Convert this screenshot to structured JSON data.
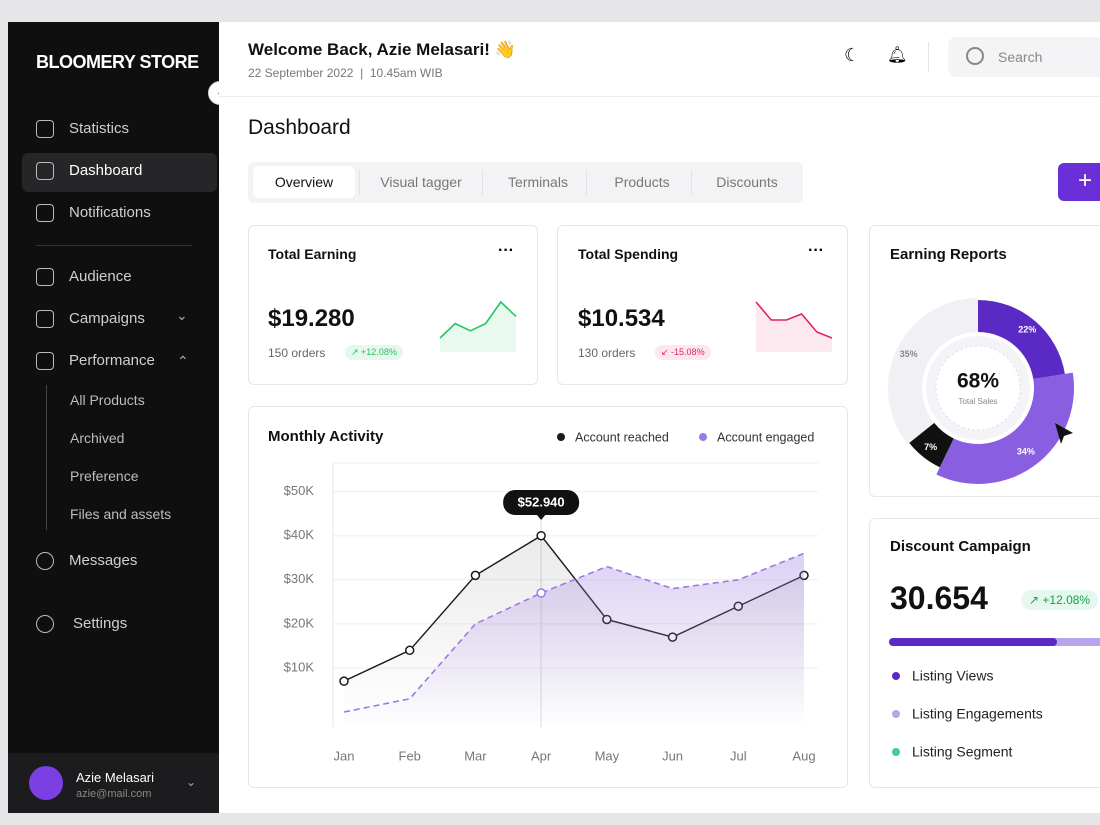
{
  "sidebar": {
    "brand": "BLOOMERY STORE",
    "menu": [
      "Statistics",
      "Dashboard",
      "Notifications",
      "Audience",
      "Campaigns",
      "Performance"
    ],
    "submenu": [
      "All Products",
      "Archived",
      "Preference",
      "Files and assets"
    ],
    "bottom_menu": [
      "Messages",
      "Settings"
    ],
    "user": {
      "name": "Azie Melasari",
      "email": "azie@mail.com"
    }
  },
  "header": {
    "greeting": "Welcome Back, Azie Melasari! 👋",
    "date": "22 September 2022",
    "time": "10.45am WIB",
    "search_placeholder": "Search"
  },
  "page_title": "Dashboard",
  "tabs": [
    "Overview",
    "Visual tagger",
    "Terminals",
    "Products",
    "Discounts"
  ],
  "cards": [
    {
      "title": "Total Earning",
      "value": "$19.280",
      "orders": "150 orders",
      "change": "+12.08%",
      "color": "#22c55e",
      "trend": [
        3,
        5,
        4,
        5,
        8,
        6
      ]
    },
    {
      "title": "Total Spending",
      "value": "$10.534",
      "orders": "130 orders",
      "change": "-15.08%",
      "color": "#e0245e",
      "trend": [
        8,
        5,
        5,
        6,
        3,
        2
      ]
    }
  ],
  "monthly_activity": {
    "type": "line",
    "title": "Monthly Activity",
    "categories": [
      "Jan",
      "Feb",
      "Mar",
      "Apr",
      "May",
      "Jun",
      "Jul",
      "Aug"
    ],
    "series": [
      {
        "name": "Account reached",
        "color": "#1a1a1a",
        "values": [
          7000,
          14000,
          31000,
          40000,
          21000,
          17000,
          24000,
          31000
        ]
      },
      {
        "name": "Account engaged",
        "color": "#9b7be0",
        "values": [
          0,
          3000,
          20000,
          27000,
          33000,
          28000,
          30000,
          36000
        ]
      }
    ],
    "ylim": [
      -3400,
      56500
    ],
    "yticks": [
      {
        "value": 10000,
        "label": "$10K"
      },
      {
        "value": 20000,
        "label": "$20K"
      },
      {
        "value": 30000,
        "label": "$30K"
      },
      {
        "value": 40000,
        "label": "$40K"
      },
      {
        "value": 50000,
        "label": "$50K"
      }
    ],
    "tooltip": "$52.940",
    "grid": true
  },
  "earning_reports": {
    "type": "pie",
    "title": "Earning Reports",
    "center_value": "68%",
    "center_label": "Total Sales",
    "values": [
      22,
      34,
      7,
      35
    ],
    "value_labels": [
      "22%",
      "34%",
      "7%",
      "35%"
    ],
    "colors": [
      "#5b2ac4",
      "#8a5ee0",
      "#111111",
      "#f1f0f5"
    ]
  },
  "discount_campaign": {
    "title": "Discount Campaign",
    "value": "30.654",
    "change": "+12.08%",
    "legend": [
      {
        "name": "Listing Views",
        "color": "#5b2ac4"
      },
      {
        "name": "Listing Engagements",
        "color": "#b9a3ec"
      },
      {
        "name": "Listing Segment",
        "color": "#3ecf8e"
      }
    ]
  }
}
